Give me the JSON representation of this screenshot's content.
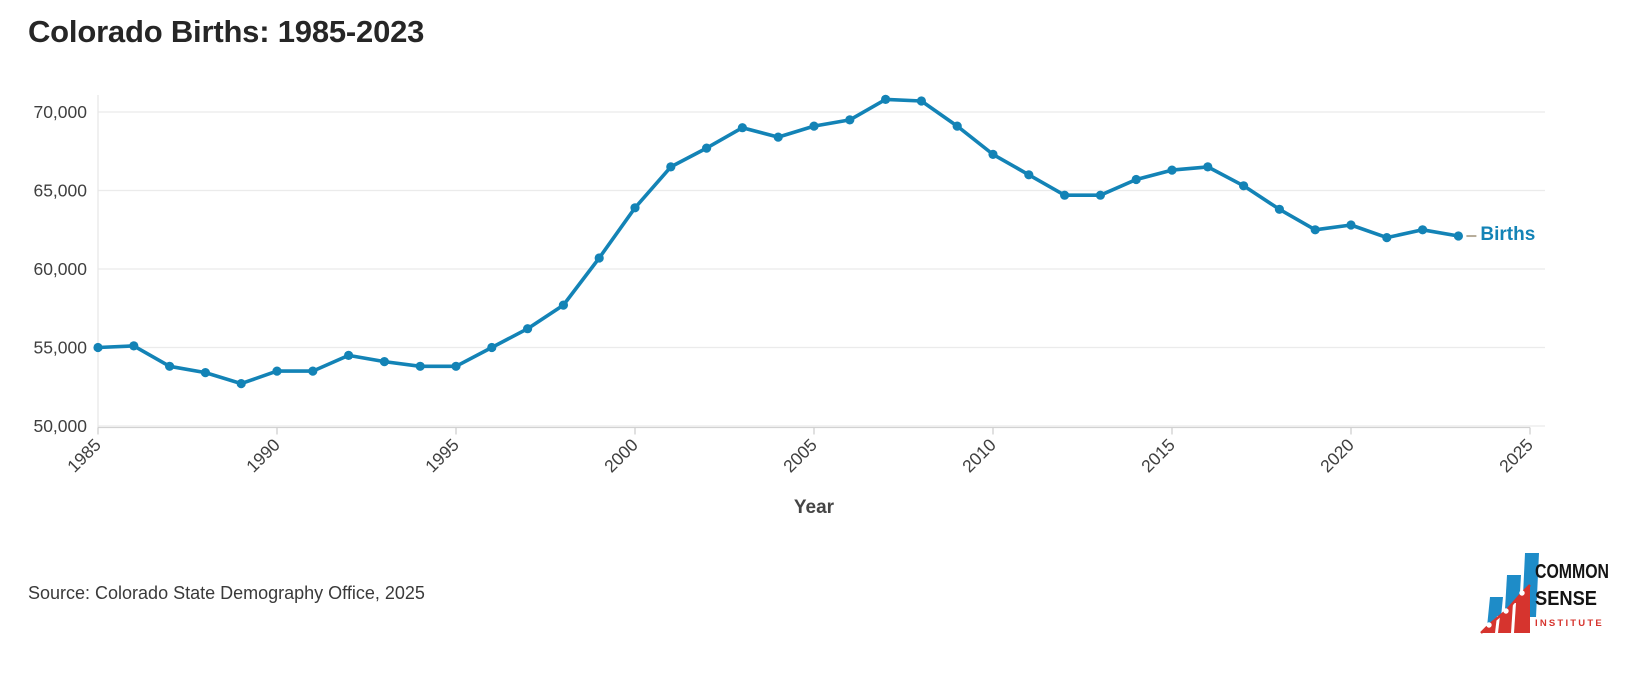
{
  "title": "Colorado Births: 1985-2023",
  "source_note": "Source: Colorado State Demography Office, 2025",
  "colors": {
    "line": "#1383b6",
    "grid": "#ebebeb",
    "axis": "#d2d2d2",
    "tick": "#cfcfcf",
    "tick_label": "#3f3f3f",
    "leader_dash": "#b6ac99",
    "logo_blue": "#1e8cc8",
    "logo_red": "#d6342e"
  },
  "logo": {
    "name": "common-sense-institute-logo",
    "line1": "COMMON",
    "line2": "SENSE",
    "line3": "INSTITUTE"
  },
  "chart_data": {
    "type": "line",
    "title": "Colorado Births: 1985-2023",
    "xlabel": "Year",
    "ylabel": "",
    "grid": "horizontal",
    "legend_position": "end-of-line",
    "xlim": [
      1985,
      2025
    ],
    "ylim": [
      50000,
      72000
    ],
    "x_ticks": [
      1985,
      1990,
      1995,
      2000,
      2005,
      2010,
      2015,
      2020,
      2025
    ],
    "y_ticks": [
      50000,
      55000,
      60000,
      65000,
      70000
    ],
    "x": [
      1985,
      1986,
      1987,
      1988,
      1989,
      1990,
      1991,
      1992,
      1993,
      1994,
      1995,
      1996,
      1997,
      1998,
      1999,
      2000,
      2001,
      2002,
      2003,
      2004,
      2005,
      2006,
      2007,
      2008,
      2009,
      2010,
      2011,
      2012,
      2013,
      2014,
      2015,
      2016,
      2017,
      2018,
      2019,
      2020,
      2021,
      2022,
      2023
    ],
    "series": [
      {
        "name": "Births",
        "color": "#1383b6",
        "values": [
          55000,
          55100,
          53800,
          53400,
          52700,
          53500,
          53500,
          54500,
          54100,
          53800,
          53800,
          55000,
          56200,
          57700,
          60700,
          63900,
          66500,
          67700,
          69000,
          68400,
          69100,
          69500,
          70800,
          70700,
          69100,
          67300,
          66000,
          64700,
          64700,
          65700,
          66300,
          66500,
          65300,
          63800,
          62500,
          62800,
          62000,
          62500,
          62100
        ]
      }
    ]
  }
}
